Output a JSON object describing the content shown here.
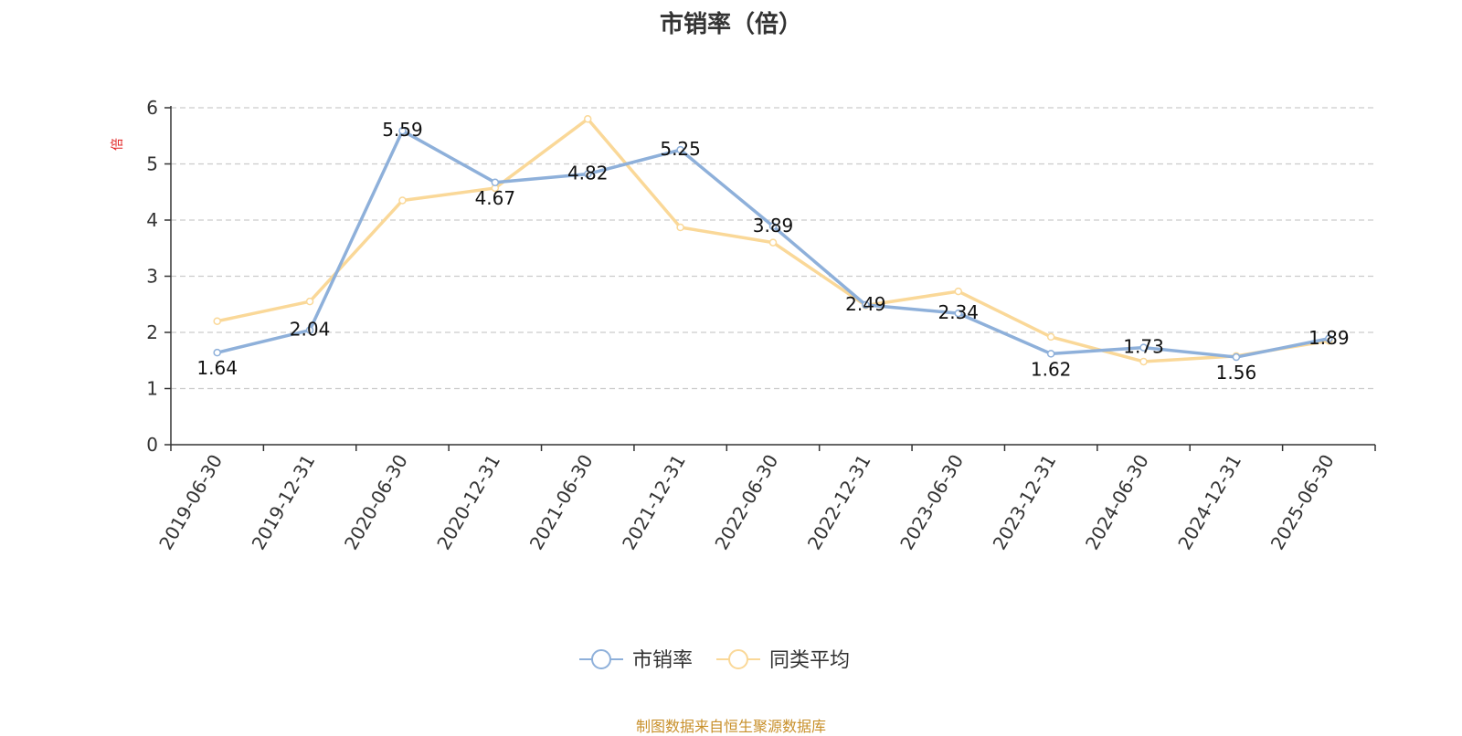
{
  "chart_data": {
    "type": "line",
    "title": "市销率（倍）",
    "ylabel": "倍",
    "xlabel": "",
    "categories": [
      "2019-06-30",
      "2019-12-31",
      "2020-06-30",
      "2020-12-31",
      "2021-06-30",
      "2021-12-31",
      "2022-06-30",
      "2022-12-31",
      "2023-06-30",
      "2023-12-31",
      "2024-06-30",
      "2024-12-31",
      "2025-06-30"
    ],
    "yticks": [
      "0",
      "1",
      "2",
      "3",
      "4",
      "5",
      "6"
    ],
    "ylim": [
      0,
      6
    ],
    "grid": true,
    "legend_position": "bottom",
    "series": [
      {
        "name": "市销率",
        "color": "#8eb0da",
        "values": [
          1.64,
          2.04,
          5.59,
          4.67,
          4.82,
          5.25,
          3.89,
          2.49,
          2.34,
          1.62,
          1.73,
          1.56,
          1.89
        ],
        "labels": [
          "1.64",
          "2.04",
          "5.59",
          "4.67",
          "4.82",
          "5.25",
          "3.89",
          "2.49",
          "2.34",
          "1.62",
          "1.73",
          "1.56",
          "1.89"
        ]
      },
      {
        "name": "同类平均",
        "color": "#fad898",
        "values": [
          2.2,
          2.55,
          4.35,
          4.57,
          5.8,
          3.87,
          3.6,
          2.48,
          2.73,
          1.92,
          1.48,
          1.58,
          1.85
        ]
      }
    ]
  },
  "footer": {
    "source": "制图数据来自恒生聚源数据库"
  },
  "colors": {
    "axis": "#333333",
    "grid": "#cccccc",
    "ylabel": "#e02020",
    "source": "#c8902b"
  }
}
